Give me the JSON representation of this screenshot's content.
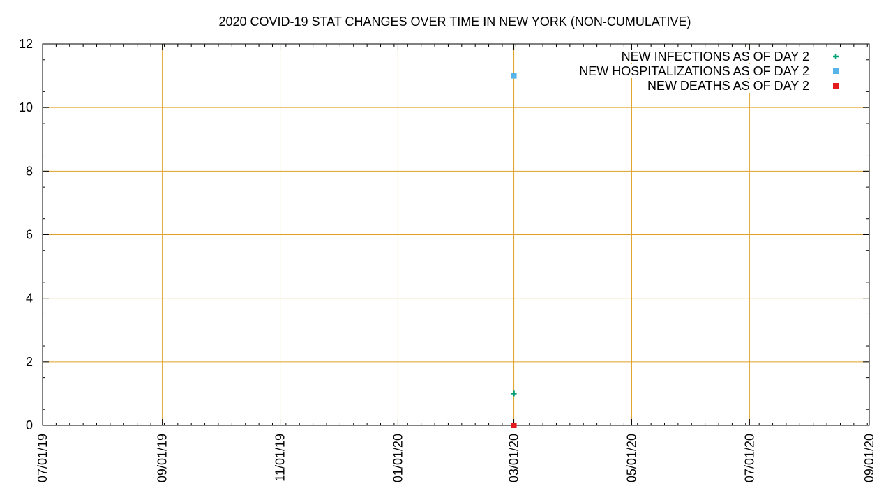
{
  "chart_data": {
    "type": "scatter",
    "title": "2020 COVID-19 STAT CHANGES OVER TIME IN NEW YORK (NON-CUMULATIVE)",
    "xlabel": "",
    "ylabel": "",
    "x_axis": {
      "type": "date",
      "range": [
        "2019-07-01",
        "2020-09-01"
      ],
      "tick_values": [
        "2019-07-01",
        "2019-09-01",
        "2019-11-01",
        "2020-01-01",
        "2020-03-01",
        "2020-05-01",
        "2020-07-01",
        "2020-09-01"
      ],
      "tick_labels": [
        "07/01/19",
        "09/01/19",
        "11/01/19",
        "01/01/20",
        "03/01/20",
        "05/01/20",
        "07/01/20",
        "09/01/20"
      ]
    },
    "y_axis": {
      "range": [
        0,
        12
      ],
      "tick_values": [
        0,
        2,
        4,
        6,
        8,
        10,
        12
      ],
      "tick_labels": [
        "0",
        "2",
        "4",
        "6",
        "8",
        "10",
        "12"
      ]
    },
    "grid": true,
    "grid_color": "#dfa025",
    "legend_position": "top-right",
    "series": [
      {
        "name": "NEW INFECTIONS AS OF DAY 2",
        "marker": "plus",
        "color": "#009e73",
        "points": [
          {
            "x": "2020-03-01",
            "y": 1
          }
        ]
      },
      {
        "name": "NEW HOSPITALIZATIONS AS OF DAY 2",
        "marker": "square",
        "color": "#56b4e9",
        "points": [
          {
            "x": "2020-03-01",
            "y": 11
          }
        ]
      },
      {
        "name": "NEW DEATHS AS OF DAY 2",
        "marker": "square",
        "color": "#e41a1c",
        "points": [
          {
            "x": "2020-03-01",
            "y": 0
          }
        ]
      }
    ]
  }
}
